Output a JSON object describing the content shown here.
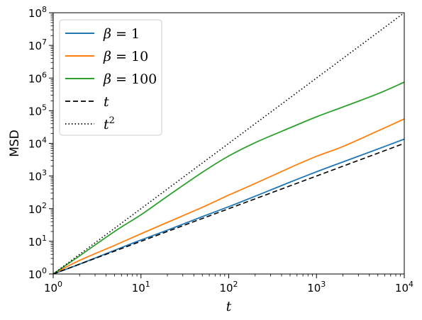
{
  "chart_data": {
    "type": "line",
    "xlabel": "t",
    "ylabel": "MSD",
    "xscale": "log",
    "yscale": "log",
    "xlim": [
      1,
      10000
    ],
    "ylim": [
      1,
      100000000
    ],
    "xticks": [
      {
        "base": "10",
        "exp": "0"
      },
      {
        "base": "10",
        "exp": "1"
      },
      {
        "base": "10",
        "exp": "2"
      },
      {
        "base": "10",
        "exp": "3"
      },
      {
        "base": "10",
        "exp": "4"
      }
    ],
    "yticks": [
      {
        "base": "10",
        "exp": "0"
      },
      {
        "base": "10",
        "exp": "1"
      },
      {
        "base": "10",
        "exp": "2"
      },
      {
        "base": "10",
        "exp": "3"
      },
      {
        "base": "10",
        "exp": "4"
      },
      {
        "base": "10",
        "exp": "5"
      },
      {
        "base": "10",
        "exp": "6"
      },
      {
        "base": "10",
        "exp": "7"
      },
      {
        "base": "10",
        "exp": "8"
      }
    ],
    "grid": false,
    "legend_position": "top-left",
    "series": [
      {
        "name": "β = 1",
        "label_var": "β",
        "label_op": " = ",
        "label_val": "1",
        "color": "#1f77b4",
        "style": "solid",
        "x": [
          1,
          2,
          5,
          10,
          20,
          50,
          100,
          200,
          500,
          1000,
          2000,
          5000,
          10000
        ],
        "y": [
          1,
          2,
          5.3,
          11,
          22,
          57,
          115,
          240,
          650,
          1350,
          2700,
          6700,
          13500
        ]
      },
      {
        "name": "β = 10",
        "label_var": "β",
        "label_op": " = ",
        "label_val": "10",
        "color": "#ff7f0e",
        "style": "solid",
        "x": [
          1,
          2,
          5,
          10,
          20,
          50,
          100,
          200,
          500,
          1000,
          2000,
          5000,
          10000
        ],
        "y": [
          1,
          2.6,
          7.5,
          17,
          38,
          110,
          260,
          590,
          1800,
          4000,
          8000,
          24000,
          56000
        ]
      },
      {
        "name": "β = 100",
        "label_var": "β",
        "label_op": " = ",
        "label_val": "100",
        "color": "#2ca02c",
        "style": "solid",
        "x": [
          1,
          2,
          5,
          10,
          20,
          50,
          100,
          200,
          500,
          1000,
          2000,
          5000,
          10000
        ],
        "y": [
          1,
          3.6,
          20,
          65,
          240,
          1300,
          4100,
          10500,
          30000,
          65000,
          130000,
          330000,
          750000
        ]
      },
      {
        "name": "t",
        "label_var": "t",
        "label_op": "",
        "label_val": "",
        "color": "#000000",
        "style": "dashed",
        "x": [
          1,
          10000
        ],
        "y": [
          1,
          10000
        ]
      },
      {
        "name": "t²",
        "label_var": "t",
        "label_op": "",
        "label_val": "",
        "label_sup": "2",
        "color": "#000000",
        "style": "dotted",
        "x": [
          1,
          10000
        ],
        "y": [
          1,
          100000000
        ]
      }
    ]
  }
}
